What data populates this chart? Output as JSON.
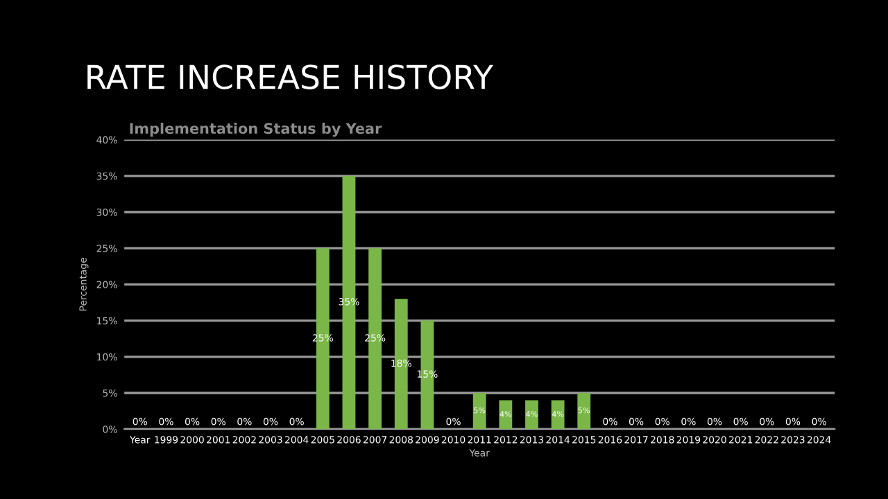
{
  "chart_data": {
    "type": "bar",
    "title": "RATE INCREASE HISTORY",
    "subtitle": "Implementation Status by Year",
    "xlabel": "Year",
    "ylabel": "Percentage",
    "categories": [
      "Year",
      "1999",
      "2000",
      "2001",
      "2002",
      "2003",
      "2004",
      "2005",
      "2006",
      "2007",
      "2008",
      "2009",
      "2010",
      "2011",
      "2012",
      "2013",
      "2014",
      "2015",
      "2016",
      "2017",
      "2018",
      "2019",
      "2020",
      "2021",
      "2022",
      "2023",
      "2024"
    ],
    "values": [
      0,
      0,
      0,
      0,
      0,
      0,
      0,
      25,
      35,
      25,
      18,
      15,
      0,
      5,
      4,
      4,
      4,
      5,
      0,
      0,
      0,
      0,
      0,
      0,
      0,
      0,
      0
    ],
    "value_labels": [
      "0%",
      "0%",
      "0%",
      "0%",
      "0%",
      "0%",
      "0%",
      "25%",
      "35%",
      "25%",
      "18%",
      "15%",
      "0%",
      "5%",
      "4%",
      "4%",
      "4%",
      "5%",
      "0%",
      "0%",
      "0%",
      "0%",
      "0%",
      "0%",
      "0%",
      "0%",
      "0%"
    ],
    "color": "#7ab648",
    "ylim": [
      0,
      40
    ],
    "yticks": [
      {
        "value": 0,
        "label": "0%"
      },
      {
        "value": 5,
        "label": "5%"
      },
      {
        "value": 10,
        "label": "10%"
      },
      {
        "value": 15,
        "label": "15%"
      },
      {
        "value": 20,
        "label": "20%"
      },
      {
        "value": 25,
        "label": "25%"
      },
      {
        "value": 30,
        "label": "30%"
      },
      {
        "value": 35,
        "label": "35%"
      },
      {
        "value": 40,
        "label": "40%"
      }
    ],
    "grid": "y"
  }
}
